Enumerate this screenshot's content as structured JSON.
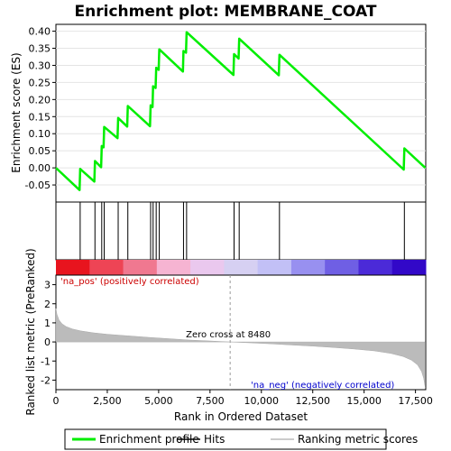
{
  "chart_data": {
    "type": "line",
    "title": "Enrichment plot: MEMBRANE_COAT",
    "es_panel": {
      "ylabel": "Enrichment score (ES)",
      "ylim": [
        -0.1,
        0.42
      ],
      "yticks": [
        -0.05,
        0.0,
        0.05,
        0.1,
        0.15,
        0.2,
        0.25,
        0.3,
        0.35,
        0.4
      ],
      "ytick_labels": [
        "-0.05",
        "0.00",
        "0.05",
        "0.10",
        "0.15",
        "0.20",
        "0.25",
        "0.30",
        "0.35",
        "0.40"
      ],
      "series": [
        {
          "name": "Enrichment profile",
          "color": "#00ee00",
          "x": [
            0,
            1150,
            1180,
            1870,
            1900,
            2200,
            2230,
            2320,
            2350,
            3000,
            3030,
            3470,
            3500,
            4580,
            4610,
            4700,
            4730,
            4850,
            4880,
            5000,
            5030,
            6180,
            6210,
            6330,
            6360,
            8640,
            8670,
            8890,
            8920,
            10850,
            10880,
            16930,
            16960,
            17980
          ],
          "y": [
            0.0,
            -0.065,
            -0.003,
            -0.04,
            0.02,
            0.002,
            0.064,
            0.06,
            0.12,
            0.087,
            0.146,
            0.121,
            0.181,
            0.122,
            0.183,
            0.178,
            0.239,
            0.234,
            0.293,
            0.287,
            0.347,
            0.282,
            0.342,
            0.337,
            0.397,
            0.272,
            0.333,
            0.32,
            0.378,
            0.271,
            0.331,
            -0.005,
            0.057,
            0.0
          ]
        }
      ]
    },
    "hits_panel": {
      "legend_entry": "Hits",
      "hit_positions": [
        1180,
        1900,
        2230,
        2350,
        3030,
        3500,
        4610,
        4730,
        4880,
        5030,
        6210,
        6360,
        8670,
        8920,
        10880,
        16960
      ]
    },
    "color_bar": {
      "colors": [
        "#e8141e",
        "#ee4455",
        "#f07890",
        "#f6b4d2",
        "#eac8ee",
        "#d6d0f2",
        "#c2c0f6",
        "#9890f0",
        "#6f5fe4",
        "#4b2ad8",
        "#3208c8"
      ]
    },
    "ranked_panel": {
      "ylabel": "Ranked list metric (PreRanked)",
      "xlabel": "Rank in Ordered Dataset",
      "ylim": [
        -2.5,
        3.5
      ],
      "yticks": [
        -2,
        -1,
        0,
        1,
        2,
        3
      ],
      "ytick_labels": [
        "-2",
        "-1",
        "0",
        "1",
        "2",
        "3"
      ],
      "xlim": [
        0,
        18000
      ],
      "xticks": [
        0,
        2500,
        5000,
        7500,
        10000,
        12500,
        15000,
        17500
      ],
      "xtick_labels": [
        "0",
        "2,500",
        "5,000",
        "7,500",
        "10,000",
        "12,500",
        "15,000",
        "17,500"
      ],
      "metric_curve": {
        "x": [
          0,
          50,
          150,
          300,
          500,
          800,
          1200,
          1800,
          2500,
          3500,
          4500,
          5500,
          6500,
          7500,
          8480,
          9500,
          10500,
          11500,
          12500,
          13500,
          14500,
          15500,
          16300,
          16900,
          17300,
          17600,
          17800,
          17900,
          17980
        ],
        "y": [
          1.75,
          1.45,
          1.15,
          0.95,
          0.8,
          0.68,
          0.58,
          0.48,
          0.4,
          0.32,
          0.24,
          0.17,
          0.1,
          0.05,
          0.0,
          -0.05,
          -0.1,
          -0.16,
          -0.22,
          -0.29,
          -0.37,
          -0.47,
          -0.6,
          -0.76,
          -0.95,
          -1.2,
          -1.55,
          -1.9,
          -2.4
        ]
      },
      "zero_cross": 8480,
      "zero_cross_label": "Zero cross at 8480",
      "pos_label": "'na_pos' (positively correlated)",
      "neg_label": "'na_neg' (negatively correlated)"
    },
    "legend": [
      {
        "label": "Enrichment profile",
        "color": "#00ee00"
      },
      {
        "label": "Hits",
        "color": "#000000"
      },
      {
        "label": "Ranking metric scores",
        "color": "#bbbbbb"
      }
    ]
  }
}
